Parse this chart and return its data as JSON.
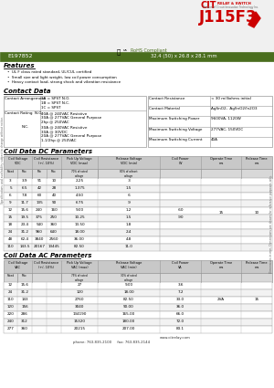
{
  "title": "J115F3",
  "part_number": "E197852",
  "dimensions": "32.4 (50) x 26.8 x 28.1 mm",
  "ul_text": "RoHS Compliant",
  "features": [
    "UL F class rated standard, UL/CUL certified",
    "Small size and light weight, low coil power consumption",
    "Heavy contact load, strong shock and vibration resistance"
  ],
  "contact_arrangement": [
    "1A = SPST N.O.",
    "1B = SPST N.C.",
    "1C = SPST"
  ],
  "contact_rating_no": [
    "40A @ 240VAC Resistive",
    "30A @ 277VAC General Purpose",
    "2hp @ 250VAC"
  ],
  "contact_rating_nc": [
    "30A @ 240VAC Resistive",
    "30A @ 30VDC",
    "20A @ 277VAC General Purpose",
    "1-1/2hp @ 250VAC"
  ],
  "contact_resistance": "< 30 milliohms initial",
  "contact_material": "AgSnO2,  AgSnO2/In2O3",
  "max_switching_power": "9600VA, 1120W",
  "max_switching_voltage": "277VAC, 150VDC",
  "max_switching_current": "40A",
  "dc_rows": [
    [
      "3",
      "3.9",
      "91",
      "10",
      "2.25",
      ".3",
      "",
      "",
      ""
    ],
    [
      "5",
      "6.5",
      "42",
      "28",
      "1.375",
      "1.5",
      "",
      "",
      ""
    ],
    [
      "6",
      "7.8",
      "60",
      "40",
      "4.50",
      ".6",
      "",
      "",
      ""
    ],
    [
      "9",
      "11.7",
      "135",
      "90",
      "6.75",
      ".9",
      "",
      "",
      ""
    ],
    [
      "12",
      "15.6",
      "240",
      "160",
      "9.00",
      "1.2",
      ".60",
      "15",
      "10"
    ],
    [
      "15",
      "19.5",
      "375",
      "250",
      "10.25",
      "1.5",
      ".90",
      "",
      ""
    ],
    [
      "18",
      "23.4",
      "540",
      "360",
      "13.50",
      "1.8",
      "",
      "",
      ""
    ],
    [
      "24",
      "31.2",
      "960",
      "640",
      "18.00",
      "2.4",
      "",
      "",
      ""
    ],
    [
      "48",
      "62.4",
      "3840",
      "2560",
      "36.00",
      "4.8",
      "",
      "",
      ""
    ],
    [
      "110",
      "143.5",
      "20167",
      "13445",
      "82.50",
      "11.0",
      "",
      "",
      ""
    ]
  ],
  "ac_rows": [
    [
      "12",
      "15.6",
      "27",
      "9.00",
      "3.6",
      "",
      "",
      ""
    ],
    [
      "24",
      "31.2",
      "120",
      "18.00",
      "7.2",
      "",
      "",
      ""
    ],
    [
      "110",
      "143",
      "2760",
      "82.50",
      "33.0",
      "2VA",
      "15",
      "10"
    ],
    [
      "120",
      "156",
      "3040",
      "90.00",
      "36.0",
      "",
      "",
      ""
    ],
    [
      "220",
      "286",
      "134190",
      "165.00",
      "66.0",
      "",
      "",
      ""
    ],
    [
      "240",
      "312",
      "15320",
      "180.00",
      "72.0",
      "",
      "",
      ""
    ],
    [
      "277",
      "360",
      "20215",
      "207.00",
      "83.1",
      "",
      "",
      ""
    ]
  ],
  "green_color": "#4a6e1e",
  "header_bg": "#c8c8c8",
  "subheader_bg": "#d8d8d8",
  "table_ec": "#999999",
  "bg_color": "#ffffff"
}
